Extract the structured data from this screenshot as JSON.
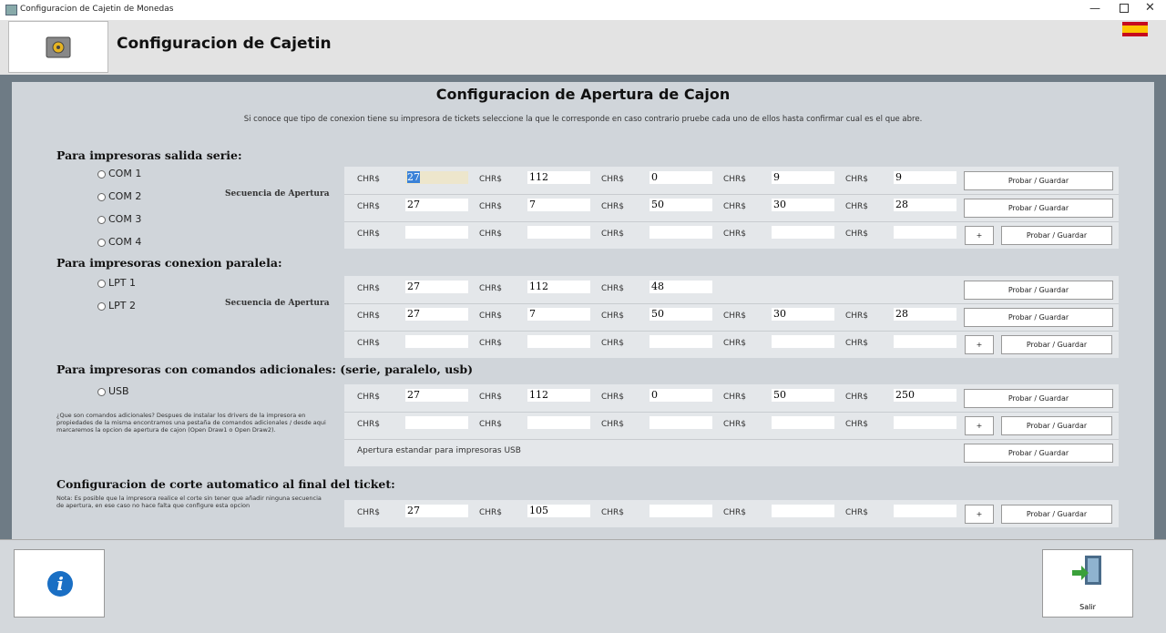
{
  "window": {
    "title": "Configuracion de Cajetin de Monedas"
  },
  "header": {
    "title": "Configuracion de Cajetin"
  },
  "labels": {
    "field": "CHR$",
    "save": "Probar / Guardar",
    "add": "+",
    "sequence": "Secuencia de Apertura",
    "exit": "Salir"
  },
  "main": {
    "title": "Configuracion de Apertura de Cajon",
    "description": "Si conoce que tipo de conexion tiene su impresora de tickets seleccione la que le corresponde en caso contrario pruebe cada uno de ellos hasta confirmar cual es el que abre."
  },
  "sections": [
    {
      "title": "Para impresoras salida serie:",
      "options": [
        "COM 1",
        "COM 2",
        "COM 3",
        "COM 4"
      ],
      "sequence": true,
      "rows": [
        {
          "values": [
            27,
            112,
            0,
            9,
            9
          ]
        },
        {
          "values": [
            27,
            7,
            50,
            30,
            28
          ]
        },
        {
          "values": [
            null,
            null,
            null,
            null,
            null
          ],
          "add": true
        }
      ]
    },
    {
      "title": "Para impresoras conexion paralela:",
      "options": [
        "LPT 1",
        "LPT 2"
      ],
      "sequence": true,
      "rows": [
        {
          "values": [
            27,
            112,
            48
          ]
        },
        {
          "values": [
            27,
            7,
            50,
            30,
            28
          ]
        },
        {
          "values": [
            null,
            null,
            null,
            null,
            null
          ],
          "add": true
        }
      ]
    },
    {
      "title": "Para impresoras con comandos adicionales: (serie, paralelo, usb)",
      "options": [
        "USB"
      ],
      "note": "¿Que son comandos adicionales? Despues de instalar los drivers de la impresora en propiedades de la misma encontramos una pestaña de comandos adicionales / desde aqui marcaremos la opcion de apertura de cajon (Open Draw1 o Open Draw2).",
      "rows": [
        {
          "values": [
            27,
            112,
            0,
            50,
            250
          ]
        },
        {
          "values": [
            null,
            null,
            null,
            null,
            null
          ],
          "add": true
        },
        {
          "text": "Apertura estandar para impresoras USB"
        }
      ]
    },
    {
      "title": "Configuracion de corte automatico al final del ticket:",
      "note": "Nota: Es posible que la impresora realice el corte sin tener que añadir ninguna secuencia de apertura, en ese caso no hace falta que configure esta opcion",
      "rows": [
        {
          "values": [
            27,
            105,
            null,
            null,
            null
          ],
          "add": true
        }
      ]
    }
  ]
}
